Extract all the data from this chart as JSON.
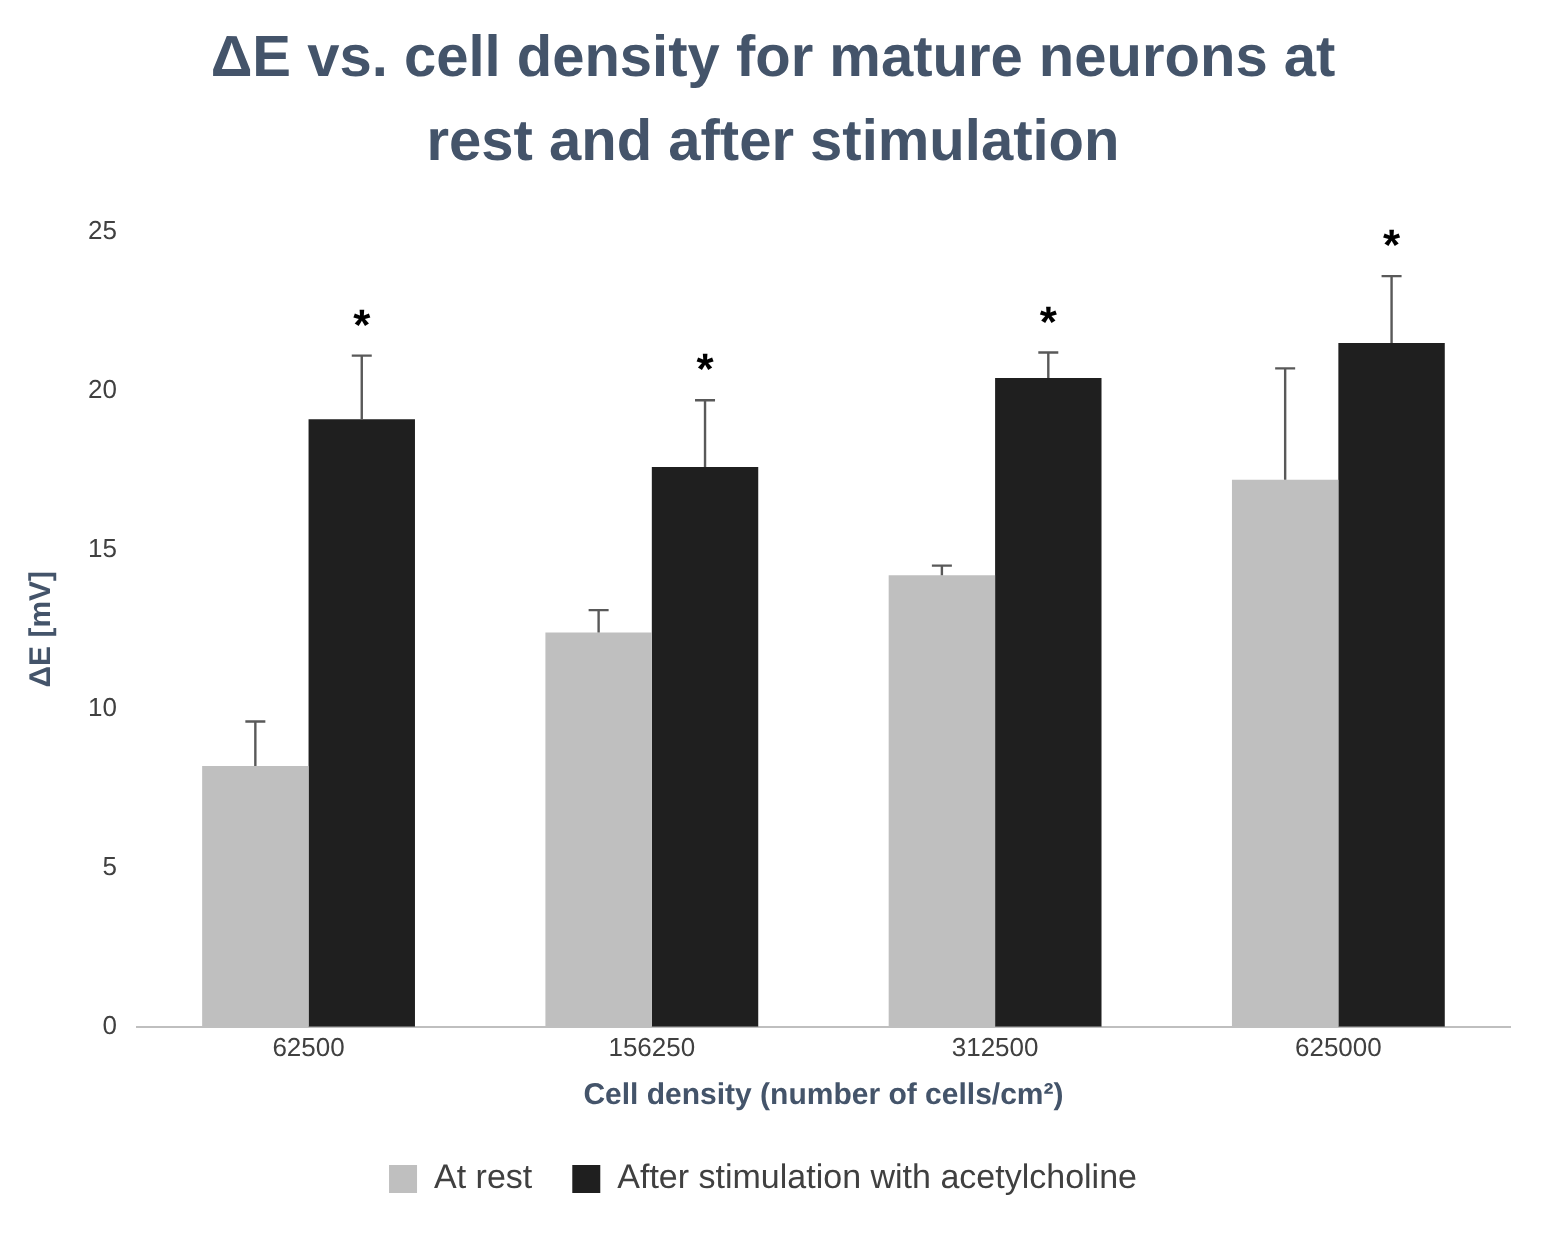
{
  "chart_data": {
    "type": "bar",
    "title": "ΔE vs. cell density for mature neurons at rest and after stimulation",
    "xlabel": "Cell density (number of cells/cm²)",
    "ylabel": "ΔE [mV]",
    "categories": [
      "62500",
      "156250",
      "312500",
      "625000"
    ],
    "series": [
      {
        "name": "At rest",
        "color": "#bfbfbf",
        "values": [
          8.2,
          12.4,
          14.2,
          17.2
        ],
        "errors": [
          [
            8.2,
            9.6
          ],
          [
            12.4,
            13.1
          ],
          [
            14.2,
            14.5
          ],
          [
            17.2,
            20.7
          ]
        ]
      },
      {
        "name": "After stimulation with acetylcholine",
        "color": "#1f1f1f",
        "values": [
          19.1,
          17.6,
          20.4,
          21.5
        ],
        "errors": [
          [
            19.1,
            21.1
          ],
          [
            17.6,
            19.7
          ],
          [
            20.4,
            21.2
          ],
          [
            21.5,
            23.6
          ]
        ]
      }
    ],
    "annotations": [
      "*",
      "*",
      "*",
      "*"
    ],
    "ylim": [
      0,
      25
    ],
    "yticks": [
      0,
      5,
      10,
      15,
      20,
      25
    ],
    "grid": false,
    "legend": "bottom"
  }
}
